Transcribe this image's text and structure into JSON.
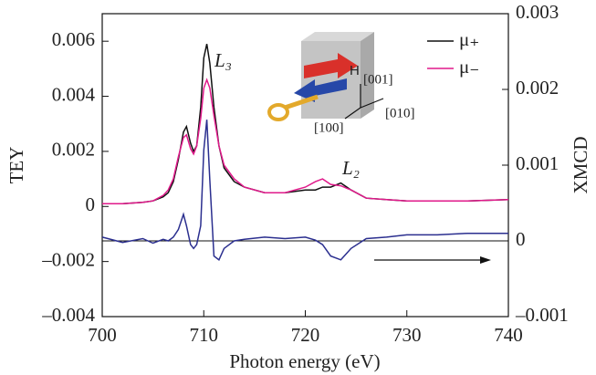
{
  "chart_data": {
    "type": "line",
    "xlabel": "Photon energy  (eV)",
    "ylabel": "TEY",
    "y2label": "XMCD",
    "x": [
      700,
      702,
      704,
      705,
      706,
      706.5,
      707,
      707.5,
      708,
      708.3,
      708.7,
      709,
      709.3,
      709.7,
      710,
      710.3,
      710.6,
      711,
      711.5,
      712,
      713,
      714,
      716,
      718,
      720,
      721,
      721.7,
      722.5,
      723.5,
      724.5,
      726,
      728,
      730,
      733,
      736,
      740
    ],
    "series": [
      {
        "name": "μ₊",
        "color": "#111111",
        "values": [
          0.0001,
          0.0001,
          0.00015,
          0.0002,
          0.00035,
          0.0005,
          0.0009,
          0.0017,
          0.0027,
          0.0029,
          0.0023,
          0.002,
          0.0022,
          0.0036,
          0.0054,
          0.0059,
          0.0052,
          0.0036,
          0.0022,
          0.0014,
          0.0009,
          0.0007,
          0.0005,
          0.0005,
          0.0006,
          0.0006,
          0.0007,
          0.0007,
          0.00085,
          0.0006,
          0.0003,
          0.00025,
          0.0002,
          0.0002,
          0.0002,
          0.00025
        ]
      },
      {
        "name": "μ₋",
        "color": "#e0198a",
        "values": [
          0.0001,
          0.0001,
          0.00015,
          0.0002,
          0.0004,
          0.0006,
          0.001,
          0.0018,
          0.0025,
          0.0026,
          0.0021,
          0.0019,
          0.0022,
          0.0032,
          0.0043,
          0.0046,
          0.0043,
          0.0033,
          0.0022,
          0.0015,
          0.001,
          0.0007,
          0.0005,
          0.0005,
          0.0007,
          0.0009,
          0.001,
          0.0008,
          0.00075,
          0.0006,
          0.0003,
          0.00025,
          0.0002,
          0.0002,
          0.0002,
          0.00025
        ]
      },
      {
        "name": "XMCD",
        "color": "#2b2f8f",
        "axis": "y2",
        "values": [
          5e-05,
          -2e-05,
          3e-05,
          -3e-05,
          2e-05,
          0,
          5e-05,
          0.00015,
          0.00035,
          0.0002,
          -5e-05,
          -0.0001,
          -5e-05,
          0.0002,
          0.0012,
          0.0016,
          0.0008,
          -0.0002,
          -0.00025,
          -0.0001,
          0,
          2e-05,
          5e-05,
          3e-05,
          5e-05,
          1e-05,
          -5e-05,
          -0.0002,
          -0.00025,
          -0.0001,
          3e-05,
          5e-05,
          8e-05,
          8e-05,
          0.0001,
          0.0001
        ]
      }
    ],
    "xlim": [
      700,
      740
    ],
    "xticks": [
      700,
      710,
      720,
      730,
      740
    ],
    "ylim": [
      -0.004,
      0.007
    ],
    "yticks": [
      {
        "value": -0.004,
        "label": "–0.004"
      },
      {
        "value": -0.002,
        "label": "–0.002"
      },
      0,
      0.002,
      0.004,
      0.006
    ],
    "y2lim": [
      -0.001,
      0.003
    ],
    "y2ticks": [
      {
        "value": -0.001,
        "label": "–0.001"
      },
      0,
      0.001,
      0.002,
      0.003
    ],
    "annotations": [
      "L₃",
      "L₂"
    ],
    "inset_labels": [
      "H",
      "[001]",
      "[010]",
      "[100]"
    ]
  }
}
